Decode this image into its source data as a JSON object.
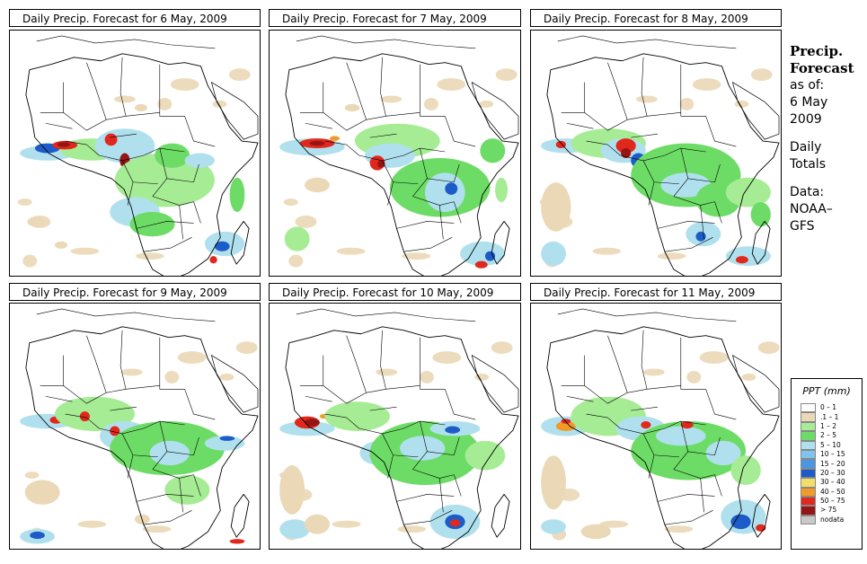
{
  "panels": [
    {
      "title": "Daily Precip. Forecast for  6 May, 2009"
    },
    {
      "title": "Daily Precip. Forecast for  7 May, 2009"
    },
    {
      "title": "Daily Precip. Forecast for  8 May, 2009"
    },
    {
      "title": "Daily Precip. Forecast for  9 May, 2009"
    },
    {
      "title": "Daily Precip. Forecast for  10 May, 2009"
    },
    {
      "title": "Daily Precip. Forecast for  11 May, 2009"
    }
  ],
  "sidebar": {
    "title_line1": "Precip.",
    "title_line2": "Forecast",
    "asof_label": "as of:",
    "date_line1": "6 May",
    "date_line2": "2009",
    "totals_line1": "Daily",
    "totals_line2": "Totals",
    "data_line1": "Data:",
    "data_line2": "NOAA–",
    "data_line3": "GFS"
  },
  "legend": {
    "title": "PPT (mm)",
    "items": [
      {
        "label": "0 – 1",
        "color": "#ffffff"
      },
      {
        "label": ".1 – 1",
        "color": "#ead8b6"
      },
      {
        "label": "1 – 2",
        "color": "#a6ec94"
      },
      {
        "label": "2 – 5",
        "color": "#6ddc66"
      },
      {
        "label": "5 – 10",
        "color": "#b0e0ee"
      },
      {
        "label": "10 – 15",
        "color": "#7ec4ec"
      },
      {
        "label": "15 – 20",
        "color": "#4a96e0"
      },
      {
        "label": "20 – 30",
        "color": "#1d5cc8"
      },
      {
        "label": "30 – 40",
        "color": "#f4de6a"
      },
      {
        "label": "40 – 50",
        "color": "#f29a28"
      },
      {
        "label": "50 – 75",
        "color": "#e0281c"
      },
      {
        "label": "> 75",
        "color": "#961414"
      },
      {
        "label": "nodata",
        "color": "#c8c8c8"
      }
    ]
  }
}
